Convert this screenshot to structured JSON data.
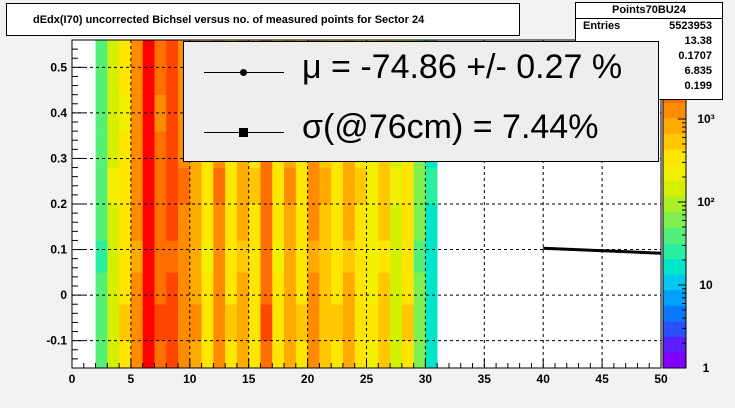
{
  "title": "dEdx(I70) uncorrected Bichsel versus no. of measured points for Sector 24",
  "stats": {
    "name": "Points70BU24",
    "rows": [
      {
        "label": "Entries",
        "value": "5523953"
      },
      {
        "label": "",
        "value": "13.38"
      },
      {
        "label": "",
        "value": "0.1707"
      },
      {
        "label": "",
        "value": "6.835"
      },
      {
        "label": "",
        "value": "0.199"
      }
    ]
  },
  "legend": {
    "mu_text": "μ  = -74.86 +/-  0.27 %",
    "sigma_text": "σ(@76cm) =  7.44%"
  },
  "colors": {
    "frame_bg": "#f2f2f2",
    "plot_bg": "#ffffff",
    "grid": "#000000",
    "fit_line": "#000000"
  },
  "chart_data": {
    "type": "heatmap",
    "title": "dEdx(I70) uncorrected Bichsel versus no. of measured points for Sector 24",
    "xlabel": "",
    "ylabel": "",
    "xlim": [
      0,
      50
    ],
    "ylim": [
      -0.16,
      0.56
    ],
    "x_ticks": [
      0,
      5,
      10,
      15,
      20,
      25,
      30,
      35,
      40,
      45,
      50
    ],
    "y_ticks": [
      -0.1,
      0,
      0.1,
      0.2,
      0.3,
      0.4,
      0.5
    ],
    "grid": true,
    "z_scale": "log",
    "z_ticks": [
      "1",
      "10",
      "10²",
      "10³"
    ],
    "palette": [
      "#7f00ff",
      "#5a1eff",
      "#2850ff",
      "#0a78ff",
      "#00a0ff",
      "#00c8f0",
      "#00e6c8",
      "#28f0a0",
      "#55f078",
      "#80f050",
      "#aaf028",
      "#d2f000",
      "#f0f000",
      "#ffe600",
      "#ffc800",
      "#ffaa00",
      "#ff8c00",
      "#ff6e00",
      "#ff4600",
      "#ff1e00",
      "#ff0000"
    ],
    "columns": [
      {
        "x0": 2,
        "x1": 3,
        "level": 8
      },
      {
        "x0": 3,
        "x1": 4,
        "level": 11
      },
      {
        "x0": 4,
        "x1": 5,
        "level": 13
      },
      {
        "x0": 5,
        "x1": 6,
        "level": 16
      },
      {
        "x0": 6,
        "x1": 7,
        "level": 20
      },
      {
        "x0": 7,
        "x1": 8,
        "level": 17
      },
      {
        "x0": 8,
        "x1": 9,
        "level": 18
      },
      {
        "x0": 9,
        "x1": 10,
        "level": 16
      },
      {
        "x0": 10,
        "x1": 11,
        "level": 15
      },
      {
        "x0": 11,
        "x1": 12,
        "level": 13
      },
      {
        "x0": 12,
        "x1": 13,
        "level": 16
      },
      {
        "x0": 13,
        "x1": 14,
        "level": 13
      },
      {
        "x0": 14,
        "x1": 15,
        "level": 15
      },
      {
        "x0": 15,
        "x1": 16,
        "level": 13
      },
      {
        "x0": 16,
        "x1": 17,
        "level": 17
      },
      {
        "x0": 17,
        "x1": 18,
        "level": 13
      },
      {
        "x0": 18,
        "x1": 19,
        "level": 15
      },
      {
        "x0": 19,
        "x1": 20,
        "level": 13
      },
      {
        "x0": 20,
        "x1": 21,
        "level": 16
      },
      {
        "x0": 21,
        "x1": 22,
        "level": 14
      },
      {
        "x0": 22,
        "x1": 23,
        "level": 13
      },
      {
        "x0": 23,
        "x1": 24,
        "level": 15
      },
      {
        "x0": 24,
        "x1": 25,
        "level": 13
      },
      {
        "x0": 25,
        "x1": 26,
        "level": 12
      },
      {
        "x0": 26,
        "x1": 27,
        "level": 14
      },
      {
        "x0": 27,
        "x1": 28,
        "level": 11
      },
      {
        "x0": 28,
        "x1": 29,
        "level": 13
      },
      {
        "x0": 29,
        "x1": 30,
        "level": 9
      },
      {
        "x0": 30,
        "x1": 31,
        "level": 6
      }
    ],
    "fit_line": {
      "x": [
        40,
        50
      ],
      "y": [
        0.103,
        0.092
      ]
    }
  }
}
